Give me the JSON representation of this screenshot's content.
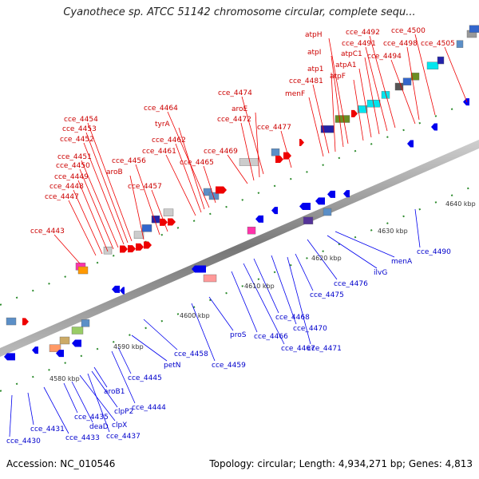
{
  "title": "Cyanothece sp. ATCC 51142 chromosome circular, complete sequ...",
  "footer": {
    "accession": "Accession: NC_010546",
    "summary": "Topology: circular; Length: 4,934,271 bp; Genes: 4,813"
  },
  "ticks": [
    "4580 kbp",
    "4590 kbp",
    "4600 kbp",
    "4610 kbp",
    "4620 kbp",
    "4630 kbp",
    "4640 kbp"
  ],
  "labels_top": [
    "cce_4443",
    "cce_4447",
    "cce_4448",
    "cce_4449",
    "cce_4450",
    "cce_4451",
    "cce_4452",
    "cce_4453",
    "cce_4454",
    "aroB",
    "cce_4456",
    "cce_4457",
    "cce_4461",
    "cce_4462",
    "tyrA",
    "cce_4464",
    "cce_4465",
    "cce_4469",
    "cce_4472",
    "aroE",
    "cce_4474",
    "cce_4477",
    "menF",
    "cce_4481",
    "atp1",
    "atpI",
    "atpH",
    "atpF",
    "atpA1",
    "atpC1",
    "cce_4491",
    "cce_4492",
    "cce_4494",
    "cce_4498",
    "cce_4500",
    "cce_4505"
  ],
  "labels_bottom": [
    "cce_4430",
    "cce_4431",
    "cce_4433",
    "cce_4435",
    "deaD",
    "clpX",
    "cce_4437",
    "clpP2",
    "aroB1",
    "cce_4444",
    "cce_4445",
    "petN",
    "cce_4458",
    "cce_4459",
    "proS",
    "cce_4466",
    "cce_4467",
    "cce_4468",
    "cce_4470",
    "cce_4471",
    "cce_4475",
    "cce_4476",
    "ilvG",
    "menA",
    "cce_4490"
  ],
  "colors": {
    "forward": "#ee0000",
    "reverse": "#0000ee",
    "backbone": "#888888"
  }
}
